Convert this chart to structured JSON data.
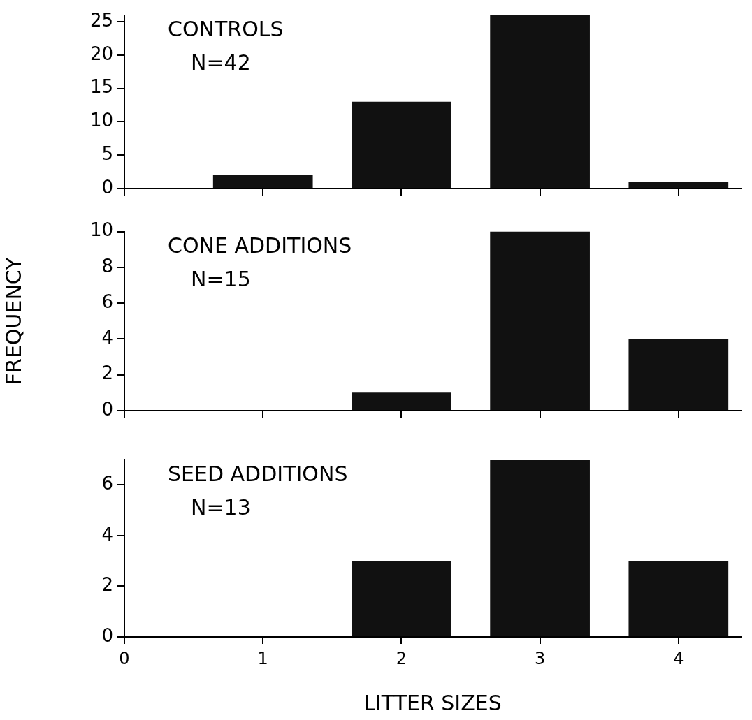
{
  "chart_data": [
    {
      "type": "bar",
      "x": [
        1,
        2,
        3,
        4
      ],
      "values": [
        2,
        13,
        26,
        1
      ],
      "color": "#111111",
      "xlim": [
        0,
        4.45
      ],
      "xticks": [
        0,
        1,
        2,
        3,
        4
      ],
      "ylim": [
        0,
        26
      ],
      "yticks": [
        0,
        5,
        10,
        15,
        20,
        25
      ],
      "grid": false,
      "legend": false,
      "tick_labels": "y",
      "annotations": [
        "CONTROLS",
        "N=42"
      ]
    },
    {
      "type": "bar",
      "x": [
        1,
        2,
        3,
        4
      ],
      "values": [
        0,
        1,
        10,
        4
      ],
      "color": "#111111",
      "xlim": [
        0,
        4.45
      ],
      "xticks": [
        0,
        1,
        2,
        3,
        4
      ],
      "ylim": [
        0,
        10
      ],
      "yticks": [
        0,
        2,
        4,
        6,
        8,
        10
      ],
      "grid": false,
      "legend": false,
      "tick_labels": "y",
      "ylabel": "FREQUENCY",
      "annotations": [
        "CONE ADDITIONS",
        "N=15"
      ]
    },
    {
      "type": "bar",
      "x": [
        1,
        2,
        3,
        4
      ],
      "values": [
        0,
        3,
        7,
        3
      ],
      "color": "#111111",
      "xlim": [
        0,
        4.45
      ],
      "xticks": [
        0,
        1,
        2,
        3,
        4
      ],
      "ylim": [
        0,
        7
      ],
      "yticks": [
        0,
        2,
        4,
        6
      ],
      "grid": false,
      "legend": false,
      "xlabel": "LITTER SIZES",
      "annotations": [
        "SEED ADDITIONS",
        "N=13"
      ]
    }
  ]
}
